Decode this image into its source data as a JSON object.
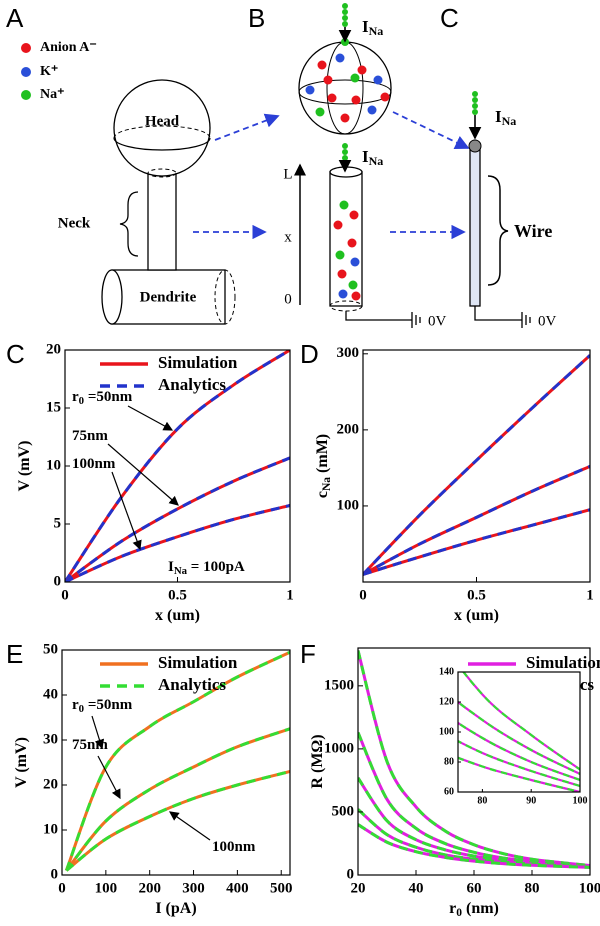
{
  "diagram": {
    "panel_labels": [
      "A",
      "B",
      "C"
    ],
    "legend": [
      "Anion A⁻",
      "K⁺",
      "Na⁺"
    ],
    "head": "Head",
    "neck": "Neck",
    "dendrite": "Dendrite",
    "current": {
      "base": "I",
      "sub": "Na"
    },
    "axis": {
      "top": "L",
      "mid": "x",
      "bottom": "0"
    },
    "ground": "0V",
    "wire": "Wire"
  },
  "chart_data": [
    {
      "type": "line",
      "panel": "C",
      "xlabel": [
        {
          "text": "x (um)"
        }
      ],
      "ylabel": [
        {
          "text": "V (mV)"
        }
      ],
      "xlim": [
        0,
        1
      ],
      "ylim": [
        0,
        20
      ],
      "xticks": [
        0,
        0.5,
        1
      ],
      "yticks": [
        0,
        5,
        10,
        15,
        20
      ],
      "styles": [
        {
          "name": "Simulation",
          "color": "#e8141c",
          "dashed": false
        },
        {
          "name": "Analytics",
          "color": "#2233cc",
          "dashed": true
        }
      ],
      "legend": true,
      "x": [
        0,
        0.25,
        0.5,
        0.75,
        1
      ],
      "curves": [
        {
          "values": [
            0,
            7.3,
            13.2,
            17,
            20
          ]
        },
        {
          "values": [
            0,
            3.5,
            6.3,
            8.7,
            10.7
          ]
        },
        {
          "values": [
            0,
            2.2,
            3.9,
            5.4,
            6.6
          ]
        }
      ],
      "annotations": [
        {
          "parts": [
            {
              "text": "r"
            },
            {
              "text": "0",
              "sub": true
            },
            {
              "text": " =50nm"
            }
          ]
        },
        {
          "parts": [
            {
              "text": "75nm"
            }
          ]
        },
        {
          "parts": [
            {
              "text": "100nm"
            }
          ]
        },
        {
          "parts": [
            {
              "text": "I"
            },
            {
              "text": "Na",
              "sub": true
            },
            {
              "text": " = 100pA"
            }
          ]
        }
      ]
    },
    {
      "type": "line",
      "panel": "D",
      "xlabel": [
        {
          "text": "x (um)"
        }
      ],
      "ylabel": [
        {
          "text": "c"
        },
        {
          "text": "Na",
          "sub": true
        },
        {
          "text": " (mM)"
        }
      ],
      "xlim": [
        0,
        1
      ],
      "ylim": [
        0,
        305
      ],
      "xticks": [
        0,
        0.5,
        1
      ],
      "yticks": [
        100,
        200,
        300
      ],
      "styles": [
        {
          "color": "#e8141c",
          "dashed": false
        },
        {
          "color": "#2233cc",
          "dashed": true
        }
      ],
      "legend": false,
      "x": [
        0,
        0.25,
        0.5,
        0.75,
        1
      ],
      "curves": [
        {
          "values": [
            10,
            88,
            160,
            230,
            298
          ]
        },
        {
          "values": [
            10,
            50,
            85,
            120,
            152
          ]
        },
        {
          "values": [
            10,
            33,
            55,
            75,
            95
          ]
        }
      ],
      "annotations": []
    },
    {
      "type": "line",
      "panel": "E",
      "xlabel": [
        {
          "text": "I (pA)"
        }
      ],
      "ylabel": [
        {
          "text": "V (mV)"
        }
      ],
      "xlim": [
        0,
        520
      ],
      "ylim": [
        0,
        50
      ],
      "xticks": [
        0,
        100,
        200,
        300,
        400,
        500
      ],
      "yticks": [
        0,
        10,
        20,
        30,
        40,
        50
      ],
      "styles": [
        {
          "name": "Simulation",
          "color": "#f07020",
          "dashed": false
        },
        {
          "name": "Analytics",
          "color": "#33dd33",
          "dashed": true
        }
      ],
      "legend": true,
      "x": [
        10,
        100,
        200,
        300,
        400,
        520
      ],
      "curves": [
        {
          "values": [
            1,
            24,
            33,
            38.5,
            44,
            49.5
          ]
        },
        {
          "values": [
            1,
            12,
            19,
            24,
            28.5,
            32.5
          ]
        },
        {
          "values": [
            1,
            8,
            13,
            17,
            20,
            23
          ]
        }
      ],
      "annotations": [
        {
          "parts": [
            {
              "text": "r"
            },
            {
              "text": "0",
              "sub": true
            },
            {
              "text": " =50nm"
            }
          ]
        },
        {
          "parts": [
            {
              "text": "75nm"
            }
          ]
        },
        {
          "parts": [
            {
              "text": "100nm"
            }
          ]
        }
      ]
    },
    {
      "type": "line",
      "panel": "F",
      "xlabel": [
        {
          "text": "r"
        },
        {
          "text": "0",
          "sub": true
        },
        {
          "text": " (nm)"
        }
      ],
      "ylabel": [
        {
          "text": "R (MΩ)"
        }
      ],
      "xlim": [
        20,
        100
      ],
      "ylim": [
        0,
        1800
      ],
      "xticks": [
        20,
        40,
        60,
        80,
        100
      ],
      "yticks": [
        0,
        500,
        1000,
        1500
      ],
      "styles": [
        {
          "name": "Simulation",
          "color": "#e020e0",
          "dashed": false
        },
        {
          "name": "Analytics",
          "color": "#33dd33",
          "dashed": true
        }
      ],
      "legend": true,
      "x": [
        20,
        30,
        40,
        50,
        60,
        70,
        80,
        90,
        100
      ],
      "curves": [
        {
          "values": [
            1780,
            900,
            540,
            350,
            240,
            170,
            125,
            98,
            75
          ]
        },
        {
          "values": [
            1130,
            600,
            370,
            250,
            180,
            135,
            108,
            88,
            72
          ]
        },
        {
          "values": [
            770,
            430,
            280,
            200,
            150,
            118,
            96,
            80,
            68
          ]
        },
        {
          "values": [
            520,
            320,
            220,
            160,
            125,
            103,
            86,
            74,
            64
          ]
        },
        {
          "values": [
            400,
            260,
            185,
            140,
            110,
            90,
            77,
            68,
            60
          ]
        }
      ],
      "annotations": [],
      "inset": {
        "xlim": [
          75,
          100
        ],
        "ylim": [
          60,
          140
        ],
        "xticks": [
          80,
          90,
          100
        ],
        "yticks": [
          60,
          80,
          100,
          120,
          140
        ]
      }
    }
  ]
}
